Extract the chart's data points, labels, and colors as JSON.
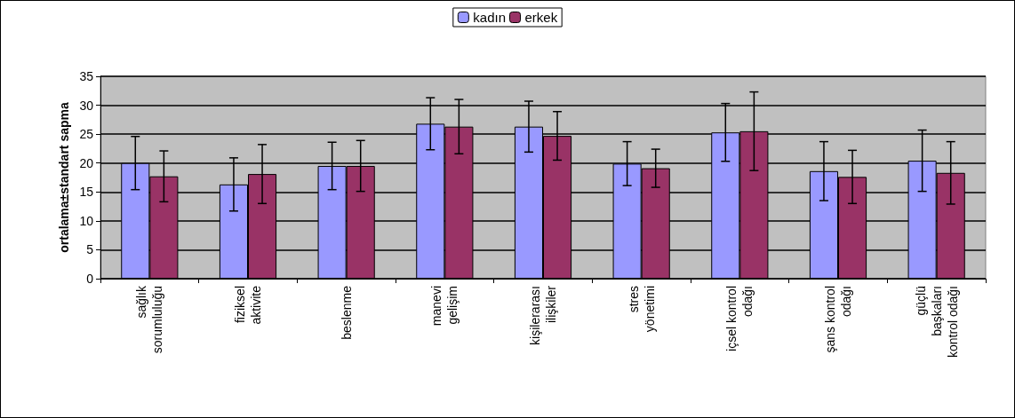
{
  "chart_data": {
    "type": "bar",
    "ylabel": "ortalama±standart sapma",
    "categories": [
      "sağlık\nsorumluluğu",
      "fiziksel\naktivite",
      "beslenme",
      "manevi\ngelişim",
      "kişilerarası\nilişkiler",
      "stres\nyönetimi",
      "içsel kontrol\nodağı",
      "şans kontrol\nodağı",
      "güçlü\nbaşkaları\nkontrol odağı"
    ],
    "series": [
      {
        "name": "kadın",
        "color": "#9999ff",
        "values": [
          20.0,
          16.3,
          19.5,
          26.8,
          26.3,
          19.9,
          25.3,
          18.6,
          20.4
        ],
        "errors": [
          4.6,
          4.6,
          4.1,
          4.5,
          4.4,
          3.8,
          5.0,
          5.1,
          5.3
        ]
      },
      {
        "name": "erkek",
        "color": "#993366",
        "values": [
          17.7,
          18.1,
          19.5,
          26.3,
          24.7,
          19.1,
          25.5,
          17.6,
          18.3
        ],
        "errors": [
          4.4,
          5.1,
          4.4,
          4.7,
          4.2,
          3.3,
          6.8,
          4.6,
          5.4
        ]
      }
    ],
    "ylim": [
      0,
      35
    ],
    "yticks": [
      0,
      5,
      10,
      15,
      20,
      25,
      30,
      35
    ],
    "grid": "y",
    "legend": "top"
  }
}
